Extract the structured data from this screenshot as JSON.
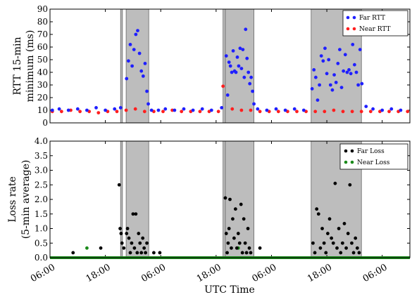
{
  "chart_data": [
    {
      "type": "scatter",
      "ylabel_lines": [
        "RTT 15-min",
        "minimum (ms)"
      ],
      "ylim": [
        0,
        90
      ],
      "yticks": [
        "0",
        "10",
        "20",
        "30",
        "40",
        "50",
        "60",
        "70",
        "80",
        "90"
      ],
      "ytick_values": [
        0,
        10,
        20,
        30,
        40,
        50,
        60,
        70,
        80,
        90
      ],
      "xlim_hours": [
        0,
        78
      ],
      "legend_position": "top-right",
      "shaded_intervals_hours": [
        [
          15.3,
          15.7
        ],
        [
          16.5,
          21.4
        ],
        [
          37.5,
          38.0
        ],
        [
          38.0,
          44.2
        ],
        [
          56.6,
          67.5
        ]
      ],
      "series": [
        {
          "name": "Far RTT",
          "color": "#1f1fff",
          "x": [
            0.5,
            2,
            4,
            6,
            8,
            10,
            12,
            14,
            15.3,
            16.6,
            17.0,
            17.4,
            17.8,
            18.2,
            18.6,
            19.0,
            19.4,
            19.8,
            20.2,
            20.6,
            21.0,
            21.3,
            22,
            23.5,
            25,
            27,
            29,
            31,
            33,
            35,
            37.2,
            38.2,
            38.5,
            38.8,
            39.1,
            39.4,
            39.7,
            40.0,
            40.3,
            40.6,
            40.9,
            41.2,
            41.5,
            41.8,
            42.1,
            42.4,
            42.7,
            43.0,
            43.3,
            43.6,
            43.9,
            44.2,
            45,
            47,
            49,
            51,
            53,
            55,
            56.8,
            57.2,
            57.6,
            58.0,
            58.4,
            58.8,
            59.2,
            59.6,
            60.0,
            60.4,
            60.8,
            61.2,
            61.6,
            62.0,
            62.4,
            62.8,
            63.2,
            63.6,
            64.0,
            64.4,
            64.8,
            65.2,
            65.6,
            66.0,
            66.4,
            66.8,
            67.2,
            67.6,
            68.5,
            70,
            72,
            74,
            76
          ],
          "y": [
            10,
            11,
            10,
            11,
            10,
            12,
            10,
            11,
            12,
            35,
            49,
            62,
            45,
            58,
            70,
            73,
            55,
            41,
            37,
            47,
            25,
            15,
            10,
            10,
            11,
            10,
            11,
            10,
            11,
            10,
            12,
            53,
            22,
            48,
            45,
            40,
            57,
            41,
            40,
            52,
            45,
            59,
            43,
            58,
            36,
            74,
            51,
            40,
            31,
            36,
            25,
            15,
            11,
            10,
            11,
            10,
            11,
            10,
            27,
            42,
            36,
            18,
            30,
            53,
            49,
            59,
            39,
            50,
            30,
            26,
            38,
            32,
            47,
            58,
            28,
            41,
            54,
            40,
            42,
            39,
            62,
            46,
            40,
            30,
            58,
            31,
            13,
            11,
            10,
            11,
            10
          ]
        },
        {
          "name": "Near RTT",
          "color": "#ff1f1f",
          "x": [
            0.5,
            2.5,
            4.5,
            6.5,
            8.5,
            10.5,
            12.5,
            14.5,
            16.5,
            18.5,
            20.5,
            22.5,
            24.5,
            26.5,
            28.5,
            30.5,
            32.5,
            34.5,
            36.5,
            37.5,
            39.5,
            41.5,
            43.5,
            45.5,
            47.5,
            49.5,
            51.5,
            53.5,
            55.5,
            57.5,
            59.5,
            61.5,
            63.5,
            65.5,
            67.5,
            69.5,
            71.5,
            73.5,
            75.5,
            77.5
          ],
          "y": [
            9,
            9,
            10,
            9,
            9,
            8,
            9,
            9,
            10,
            11,
            9,
            9,
            9,
            10,
            9,
            9,
            9,
            9,
            9,
            29,
            11,
            10,
            10,
            9,
            9,
            9,
            9,
            9,
            9,
            9,
            9,
            10,
            9,
            9,
            9,
            9,
            9,
            9,
            9,
            9
          ]
        }
      ]
    },
    {
      "type": "scatter",
      "ylabel_lines": [
        "Loss rate",
        "(5-min average)"
      ],
      "xlabel": "UTC Time",
      "ylim": [
        0,
        4.0
      ],
      "yticks": [
        "0.0",
        "0.5",
        "1.0",
        "1.5",
        "2.0",
        "2.5",
        "3.0",
        "3.5",
        "4.0"
      ],
      "ytick_values": [
        0,
        0.5,
        1.0,
        1.5,
        2.0,
        2.5,
        3.0,
        3.5,
        4.0
      ],
      "xlim_hours": [
        0,
        78
      ],
      "xticks": [
        "06:00",
        "18:00",
        "06:00",
        "18:00",
        "06:00",
        "18:00",
        "06:00"
      ],
      "xtick_hours": [
        0,
        12,
        24,
        36,
        48,
        60,
        72
      ],
      "legend_position": "top-right",
      "shaded_intervals_hours": [
        [
          15.3,
          15.7
        ],
        [
          16.5,
          21.4
        ],
        [
          37.5,
          38.0
        ],
        [
          38.0,
          44.2
        ],
        [
          56.6,
          67.5
        ]
      ],
      "series": [
        {
          "name": "Far Loss",
          "color": "#000000",
          "x": [
            5,
            11,
            15.0,
            15.2,
            15.4,
            15.6,
            16.0,
            16.6,
            16.8,
            17.1,
            17.4,
            17.7,
            18.0,
            18.3,
            18.6,
            18.9,
            19.2,
            19.5,
            19.8,
            20.1,
            20.4,
            20.7,
            21.0,
            22.5,
            23.8,
            38.0,
            38.2,
            38.4,
            38.6,
            38.8,
            39.0,
            39.3,
            39.6,
            39.9,
            40.2,
            40.5,
            40.8,
            41.1,
            41.4,
            41.7,
            42.0,
            42.3,
            42.6,
            42.9,
            43.2,
            43.5,
            45.5,
            57.0,
            57.4,
            57.8,
            58.2,
            58.6,
            59.0,
            59.4,
            59.8,
            60.2,
            60.6,
            61.0,
            61.4,
            61.8,
            62.2,
            62.6,
            63.0,
            63.4,
            63.8,
            64.2,
            64.6,
            65.0,
            65.4,
            65.8,
            66.2,
            66.6,
            67.0
          ],
          "y": [
            0.17,
            0.33,
            2.5,
            1.0,
            0.83,
            0.5,
            0.33,
            0.83,
            1.0,
            0.67,
            0.17,
            0.5,
            1.5,
            0.33,
            1.5,
            0.17,
            0.83,
            0.5,
            0.17,
            0.67,
            0.33,
            0.17,
            0.5,
            0.17,
            0.17,
            2.05,
            0.83,
            0.17,
            0.5,
            1.0,
            2.0,
            0.33,
            1.33,
            0.67,
            1.67,
            0.33,
            0.83,
            0.5,
            1.83,
            0.17,
            1.33,
            0.5,
            0.17,
            1.0,
            0.33,
            0.17,
            0.33,
            0.5,
            0.17,
            1.67,
            1.5,
            0.33,
            1.0,
            0.5,
            0.17,
            0.83,
            1.33,
            0.67,
            0.5,
            2.55,
            0.33,
            1.0,
            0.17,
            0.5,
            1.17,
            0.33,
            0.83,
            2.5,
            0.5,
            0.17,
            0.67,
            0.33,
            0.17
          ]
        },
        {
          "name": "Near Loss",
          "color": "#1a8a1a",
          "baseline_value": 0.0,
          "x": [
            8,
            40.8
          ],
          "y": [
            0.33,
            0.33
          ]
        }
      ]
    }
  ]
}
